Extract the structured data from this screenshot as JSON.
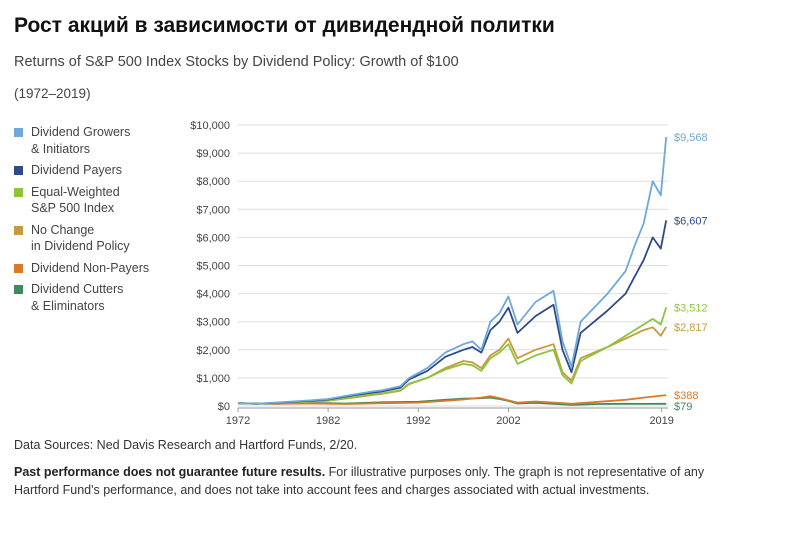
{
  "page": {
    "heading": "Рост акций в зависимости от дивидендной политки",
    "source": "Data Sources: Ned Davis Research and Hartford Funds, 2/20.",
    "disclaimer_bold": "Past performance does not guarantee future results.",
    "disclaimer_rest": " For illustrative purposes only. The graph is not representative of any Hartford Fund's performance, and does not take into account fees and charges associated with actual investments."
  },
  "chart_data": {
    "type": "line",
    "title": "Returns of S&P 500 Index Stocks by Dividend Policy: Growth of $100",
    "subtitle": "(1972–2019)",
    "xlabel": "",
    "ylabel": "",
    "xlim": [
      1972,
      2019.7
    ],
    "ylim": [
      0,
      10000
    ],
    "y_ticks": [
      0,
      1000,
      2000,
      3000,
      4000,
      5000,
      6000,
      7000,
      8000,
      9000,
      10000
    ],
    "y_tick_labels": [
      "$0",
      "$1,000",
      "$2,000",
      "$3,000",
      "$4,000",
      "$5,000",
      "$6,000",
      "$7,000",
      "$8,000",
      "$9,000",
      "$10,000"
    ],
    "x_ticks": [
      1972,
      1982,
      1992,
      2002,
      2019
    ],
    "x_tick_labels": [
      "1972",
      "1982",
      "1992",
      "2002",
      "2019"
    ],
    "grid": true,
    "legend_position": "left",
    "series": [
      {
        "name": "Dividend Growers\n& Initiators",
        "color": "#6ea8dc",
        "end_label": "$9,568",
        "x": [
          1972,
          1974,
          1976,
          1980,
          1982,
          1985,
          1987,
          1988,
          1990,
          1991,
          1993,
          1995,
          1997,
          1998,
          1999,
          2000,
          2001,
          2002,
          2003,
          2005,
          2007,
          2008,
          2009,
          2010,
          2013,
          2015,
          2016,
          2017,
          2018,
          2018.9,
          2019.5
        ],
        "y": [
          100,
          80,
          120,
          200,
          250,
          420,
          520,
          560,
          700,
          1000,
          1350,
          1900,
          2200,
          2300,
          2000,
          3000,
          3300,
          3900,
          2900,
          3700,
          4100,
          2300,
          1400,
          3000,
          4000,
          4800,
          5700,
          6500,
          8000,
          7500,
          9568
        ]
      },
      {
        "name": "Dividend Payers",
        "color": "#2d4a8a",
        "end_label": "$6,607",
        "x": [
          1972,
          1974,
          1976,
          1980,
          1982,
          1985,
          1987,
          1988,
          1990,
          1991,
          1993,
          1995,
          1997,
          1998,
          1999,
          2000,
          2001,
          2002,
          2003,
          2005,
          2007,
          2008,
          2009,
          2010,
          2013,
          2015,
          2016,
          2017,
          2018,
          2018.9,
          2019.5
        ],
        "y": [
          100,
          80,
          110,
          180,
          230,
          390,
          480,
          520,
          650,
          950,
          1250,
          1750,
          2000,
          2100,
          1900,
          2700,
          3000,
          3500,
          2600,
          3200,
          3600,
          2000,
          1200,
          2600,
          3400,
          4000,
          4600,
          5200,
          6000,
          5600,
          6607
        ]
      },
      {
        "name": "Equal-Weighted\nS&P 500 Index",
        "color": "#8cc43f",
        "end_label": "$3,512",
        "x": [
          1972,
          1974,
          1976,
          1980,
          1982,
          1985,
          1987,
          1988,
          1990,
          1991,
          1993,
          1995,
          1997,
          1998,
          1999,
          2000,
          2001,
          2002,
          2003,
          2005,
          2007,
          2008,
          2009,
          2010,
          2013,
          2015,
          2016,
          2017,
          2018,
          2018.9,
          2019.5
        ],
        "y": [
          100,
          75,
          100,
          160,
          200,
          330,
          420,
          450,
          560,
          800,
          1000,
          1300,
          1500,
          1450,
          1250,
          1700,
          1900,
          2200,
          1500,
          1800,
          2000,
          1100,
          800,
          1600,
          2100,
          2500,
          2700,
          2900,
          3100,
          2900,
          3512
        ]
      },
      {
        "name": "No Change\nin Dividend Policy",
        "color": "#c79a3a",
        "end_label": "$2,817",
        "x": [
          1972,
          1974,
          1976,
          1980,
          1982,
          1985,
          1987,
          1988,
          1990,
          1991,
          1993,
          1995,
          1997,
          1998,
          1999,
          2000,
          2001,
          2002,
          2003,
          2005,
          2007,
          2008,
          2009,
          2010,
          2013,
          2015,
          2016,
          2017,
          2018,
          2018.9,
          2019.5
        ],
        "y": [
          100,
          75,
          100,
          150,
          190,
          310,
          400,
          430,
          540,
          780,
          1000,
          1350,
          1600,
          1550,
          1350,
          1800,
          2000,
          2400,
          1700,
          2000,
          2200,
          1200,
          900,
          1700,
          2100,
          2400,
          2550,
          2700,
          2800,
          2500,
          2817
        ]
      },
      {
        "name": "Dividend Non-Payers",
        "color": "#d97a2b",
        "end_label": "$388",
        "x": [
          1972,
          1976,
          1980,
          1984,
          1988,
          1992,
          1995,
          1997,
          1999,
          2000,
          2001,
          2002,
          2003,
          2005,
          2008,
          2009,
          2012,
          2015,
          2017,
          2019.5
        ],
        "y": [
          100,
          80,
          90,
          70,
          100,
          120,
          180,
          230,
          300,
          350,
          280,
          200,
          120,
          160,
          100,
          80,
          150,
          220,
          300,
          388
        ]
      },
      {
        "name": "Dividend Cutters\n& Eliminators",
        "color": "#3f8a5c",
        "end_label": "$79",
        "x": [
          1972,
          1976,
          1980,
          1984,
          1988,
          1992,
          1995,
          1997,
          1999,
          2000,
          2001,
          2002,
          2003,
          2005,
          2008,
          2009,
          2012,
          2015,
          2017,
          2019.5
        ],
        "y": [
          100,
          80,
          110,
          90,
          130,
          150,
          220,
          260,
          280,
          300,
          250,
          180,
          90,
          110,
          60,
          40,
          70,
          80,
          75,
          79
        ]
      }
    ]
  }
}
